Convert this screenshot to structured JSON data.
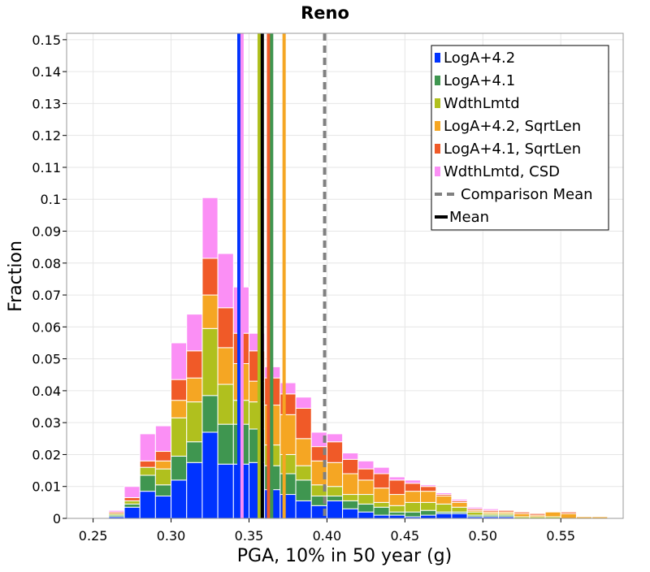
{
  "chart_data": {
    "type": "bar",
    "stacked": true,
    "title": "Reno",
    "xlabel": "PGA, 10% in 50 year (g)",
    "ylabel": "Fraction",
    "xlim": [
      0.233,
      0.59
    ],
    "ylim": [
      0,
      0.152
    ],
    "bin_width": 0.01,
    "xticks": [
      0.25,
      0.3,
      0.35,
      0.4,
      0.45,
      0.5,
      0.55
    ],
    "xtick_labels": [
      "0.25",
      "0.30",
      "0.35",
      "0.40",
      "0.45",
      "0.50",
      "0.55"
    ],
    "yticks": [
      0,
      0.01,
      0.02,
      0.03,
      0.04,
      0.05,
      0.06,
      0.07,
      0.08,
      0.09,
      0.1,
      0.11,
      0.12,
      0.13,
      0.14,
      0.15
    ],
    "ytick_labels": [
      "0",
      "0.01",
      "0.02",
      "0.03",
      "0.04",
      "0.05",
      "0.06",
      "0.07",
      "0.08",
      "0.09",
      "0.1",
      "0.11",
      "0.12",
      "0.13",
      "0.14",
      "0.15"
    ],
    "grid": true,
    "legend_position": "top-right",
    "bin_centers": [
      0.245,
      0.255,
      0.265,
      0.275,
      0.285,
      0.295,
      0.305,
      0.315,
      0.325,
      0.335,
      0.345,
      0.355,
      0.365,
      0.375,
      0.385,
      0.395,
      0.405,
      0.415,
      0.425,
      0.435,
      0.445,
      0.455,
      0.465,
      0.475,
      0.485,
      0.495,
      0.505,
      0.515,
      0.525,
      0.535,
      0.545,
      0.555,
      0.565,
      0.575
    ],
    "series": [
      {
        "name": "LogA+4.2",
        "color": "#0033ff",
        "values": [
          0,
          0,
          0.0005,
          0.0035,
          0.0085,
          0.007,
          0.012,
          0.0175,
          0.027,
          0.017,
          0.017,
          0.0175,
          0.009,
          0.0075,
          0.0055,
          0.004,
          0.0055,
          0.003,
          0.002,
          0.001,
          0.001,
          0.0005,
          0.001,
          0.0015,
          0.0015,
          0.0005,
          0.0005,
          0.0005,
          0,
          0,
          0,
          0,
          0,
          0
        ]
      },
      {
        "name": "LogA+4.1",
        "color": "#3f9650",
        "values": [
          0,
          0,
          0.0005,
          0.001,
          0.005,
          0.0035,
          0.0075,
          0.0065,
          0.0115,
          0.0125,
          0.0125,
          0.0105,
          0.0075,
          0.0065,
          0.0065,
          0.003,
          0.0015,
          0.0025,
          0.0025,
          0.0025,
          0.001,
          0.0015,
          0.0015,
          0.0005,
          0.0005,
          0.0005,
          0.0005,
          0.0005,
          0,
          0,
          0,
          0,
          0,
          0
        ]
      },
      {
        "name": "WdthLmtd",
        "color": "#b0c01e",
        "values": [
          0,
          0,
          0.0005,
          0.001,
          0.0025,
          0.005,
          0.012,
          0.0125,
          0.021,
          0.0125,
          0.0075,
          0.0085,
          0.0065,
          0.006,
          0.0045,
          0.0035,
          0.003,
          0.002,
          0.003,
          0.0015,
          0.002,
          0.003,
          0.0025,
          0.0025,
          0.0015,
          0.001,
          0.0005,
          0.0005,
          0.0005,
          0.0005,
          0.0005,
          0,
          0,
          0
        ]
      },
      {
        "name": "LogA+4.2, SqrtLen",
        "color": "#f5a623",
        "values": [
          0,
          0,
          0,
          0,
          0,
          0.0025,
          0.0055,
          0.0075,
          0.0105,
          0.0115,
          0.0115,
          0.0065,
          0.0125,
          0.0125,
          0.0085,
          0.0075,
          0.0075,
          0.0065,
          0.0045,
          0.0045,
          0.0035,
          0.0035,
          0.0035,
          0.0025,
          0.0015,
          0.0005,
          0.0005,
          0.0005,
          0.001,
          0.0005,
          0.0015,
          0.0015,
          0.0005,
          0.0005
        ]
      },
      {
        "name": "LogA+4.1, SqrtLen",
        "color": "#f05a28",
        "values": [
          0,
          0,
          0.0005,
          0.001,
          0.002,
          0.003,
          0.0065,
          0.0085,
          0.0115,
          0.0125,
          0.0095,
          0.0095,
          0.0085,
          0.0065,
          0.0095,
          0.0045,
          0.0065,
          0.0045,
          0.0035,
          0.0045,
          0.0045,
          0.0025,
          0.0015,
          0.0005,
          0.0005,
          0.0005,
          0.0005,
          0.0005,
          0.0005,
          0.0005,
          0,
          0.0005,
          0,
          0
        ]
      },
      {
        "name": "WdthLmtd, CSD",
        "color": "#fb8ff5",
        "values": [
          0,
          0,
          0.0005,
          0.0035,
          0.0085,
          0.008,
          0.0115,
          0.0115,
          0.019,
          0.017,
          0.0145,
          0.0055,
          0.0035,
          0.0035,
          0.0035,
          0.0045,
          0.0025,
          0.002,
          0.0025,
          0.002,
          0.001,
          0.001,
          0.0005,
          0.0005,
          0.0005,
          0.0005,
          0.0005,
          0,
          0,
          0,
          0,
          0,
          0,
          0
        ]
      }
    ],
    "mean_lines": [
      {
        "name": "LogA+4.2",
        "x": 0.3435,
        "color": "#0033ff"
      },
      {
        "name": "WdthLmtd, CSD",
        "x": 0.3455,
        "color": "#fb8ff5"
      },
      {
        "name": "WdthLmtd",
        "x": 0.3565,
        "color": "#b0c01e"
      },
      {
        "name": "LogA+4.1, SqrtLen",
        "x": 0.3625,
        "color": "#f05a28"
      },
      {
        "name": "LogA+4.1",
        "x": 0.3645,
        "color": "#3f9650"
      },
      {
        "name": "LogA+4.2, SqrtLen",
        "x": 0.3725,
        "color": "#f5a623"
      }
    ],
    "mean": {
      "name": "Mean",
      "x": 0.3585,
      "color": "#000000"
    },
    "comparison_mean": {
      "name": "Comparison Mean",
      "x": 0.3985,
      "color": "#808080"
    }
  }
}
